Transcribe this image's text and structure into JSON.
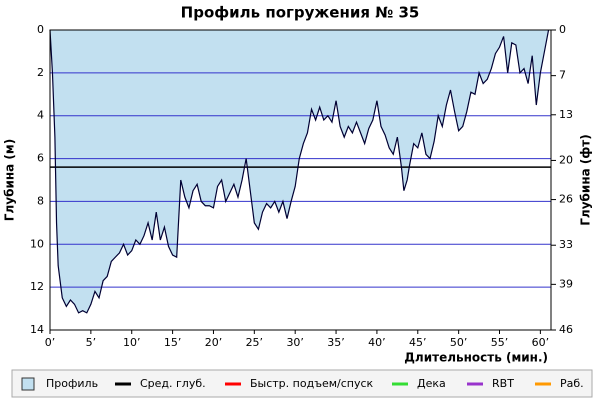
{
  "chart_data": {
    "type": "area",
    "title": "Профиль погружения № 35",
    "x_label": "Длительность (мин.)",
    "y_label": "Глубина (м)",
    "y2_label": "Глубина (фт)",
    "x": [
      0,
      0.3,
      0.6,
      0.8,
      1,
      1.5,
      2,
      2.5,
      3,
      3.5,
      4,
      4.5,
      5,
      5.5,
      6,
      6.5,
      7,
      7.5,
      8,
      8.5,
      9,
      9.5,
      10,
      10.5,
      11,
      11.5,
      12,
      12.5,
      13,
      13.5,
      14,
      14.5,
      15,
      15.5,
      16,
      16.5,
      17,
      17.5,
      18,
      18.5,
      19,
      19.5,
      20,
      20.5,
      21,
      21.5,
      22,
      22.5,
      23,
      23.5,
      24,
      24.5,
      25,
      25.5,
      26,
      26.5,
      27,
      27.5,
      28,
      28.5,
      29,
      29.5,
      30,
      30.5,
      31,
      31.5,
      32,
      32.5,
      33,
      33.5,
      34,
      34.5,
      35,
      35.5,
      36,
      36.5,
      37,
      37.5,
      38,
      38.5,
      39,
      39.5,
      40,
      40.5,
      41,
      41.5,
      42,
      42.5,
      43,
      43.3,
      43.7,
      44,
      44.5,
      45,
      45.5,
      46,
      46.5,
      47,
      47.5,
      48,
      48.5,
      49,
      49.5,
      50,
      50.5,
      51,
      51.5,
      52,
      52.5,
      53,
      53.5,
      54,
      54.5,
      55,
      55.5,
      56,
      56.5,
      57,
      57.5,
      58,
      58.5,
      59,
      59.5,
      60,
      60.5,
      61
    ],
    "series": [
      {
        "name": "Профиль",
        "color": "#c2e0f0",
        "values": [
          0,
          2,
          5,
          9,
          11,
          12.5,
          12.9,
          12.6,
          12.8,
          13.2,
          13.1,
          13.2,
          12.8,
          12.2,
          12.5,
          11.7,
          11.5,
          10.8,
          10.6,
          10.4,
          10.0,
          10.5,
          10.3,
          9.8,
          10.0,
          9.6,
          9.0,
          9.8,
          8.5,
          9.8,
          9.2,
          10.1,
          10.5,
          10.6,
          7.0,
          7.8,
          8.3,
          7.5,
          7.2,
          8.0,
          8.2,
          8.2,
          8.3,
          7.3,
          7.0,
          8.0,
          7.6,
          7.2,
          7.8,
          7.0,
          6.0,
          7.5,
          9.0,
          9.3,
          8.5,
          8.1,
          8.3,
          8.0,
          8.5,
          8.0,
          8.8,
          8.0,
          7.3,
          6.0,
          5.3,
          4.8,
          3.7,
          4.2,
          3.6,
          4.2,
          4.0,
          4.3,
          3.3,
          4.5,
          5.0,
          4.5,
          4.8,
          4.3,
          4.8,
          5.3,
          4.6,
          4.2,
          3.3,
          4.5,
          4.9,
          5.5,
          5.8,
          5.0,
          6.4,
          7.5,
          7.0,
          6.3,
          5.3,
          5.5,
          4.8,
          5.8,
          6.0,
          5.2,
          4.0,
          4.5,
          3.5,
          2.8,
          3.8,
          4.7,
          4.5,
          3.8,
          2.9,
          3.0,
          2.0,
          2.5,
          2.3,
          1.8,
          1.1,
          0.8,
          0.3,
          2.0,
          0.6,
          0.7,
          2.0,
          1.8,
          2.5,
          1.2,
          3.5,
          2.0,
          1.0,
          0
        ]
      }
    ],
    "average": {
      "name": "Сред. глуб.",
      "color": "#000000",
      "value": 6.4
    },
    "legend_extra": [
      {
        "name": "Быстр. подъем/спуск",
        "color": "#ff0000"
      },
      {
        "name": "Дека",
        "color": "#33dd33"
      },
      {
        "name": "RBT",
        "color": "#9933cc"
      },
      {
        "name": "Раб.",
        "color": "#ff9900"
      }
    ],
    "xlim": [
      0,
      61.3
    ],
    "xticks": [
      {
        "value": 0,
        "label": "0’"
      },
      {
        "value": 5,
        "label": "5’"
      },
      {
        "value": 10,
        "label": "10’"
      },
      {
        "value": 15,
        "label": "15’"
      },
      {
        "value": 20,
        "label": "20’"
      },
      {
        "value": 25,
        "label": "25’"
      },
      {
        "value": 30,
        "label": "30’"
      },
      {
        "value": 35,
        "label": "35’"
      },
      {
        "value": 40,
        "label": "40’"
      },
      {
        "value": 45,
        "label": "45’"
      },
      {
        "value": 50,
        "label": "50’"
      },
      {
        "value": 55,
        "label": "55’"
      },
      {
        "value": 60,
        "label": "60’"
      }
    ],
    "ylim": [
      0,
      14
    ],
    "yticks": [
      0,
      2,
      4,
      6,
      8,
      10,
      12,
      14
    ],
    "y2lim": [
      0,
      46
    ],
    "y2ticks": [
      0,
      7,
      13,
      20,
      26,
      33,
      39,
      46
    ],
    "y_inverted": true,
    "grid": true,
    "grid_color": "#3333cc",
    "line_color": "#000033"
  }
}
